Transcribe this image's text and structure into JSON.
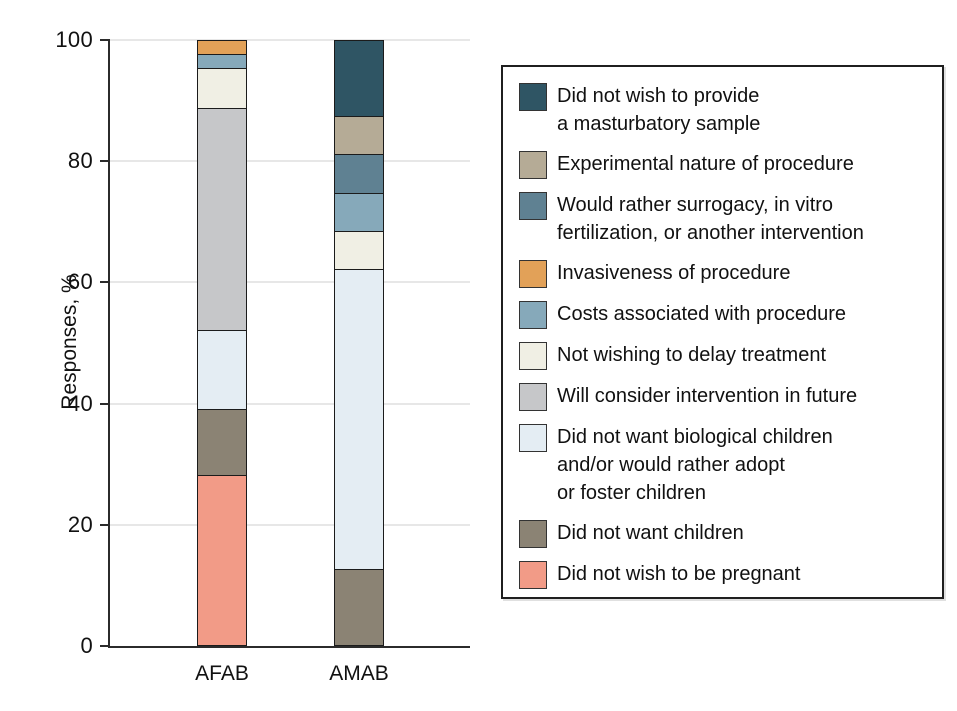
{
  "chart_data": {
    "type": "bar",
    "stacked": true,
    "title": "",
    "xlabel": "",
    "ylabel": "Responses, %",
    "ylim": [
      0,
      100
    ],
    "y_ticks": [
      0,
      20,
      40,
      60,
      80,
      100
    ],
    "grid": "horizontal",
    "legend_position": "right",
    "categories": [
      "AFAB",
      "AMAB"
    ],
    "stack_order": "series listed top-of-bar to bottom-of-bar; values are percent of responses per category",
    "series": [
      {
        "label": "Did not wish to provide a masturbatory sample",
        "label_lines": [
          "Did not wish to provide",
          "a masturbatory sample"
        ],
        "color": "#2F5564",
        "values": [
          0,
          12.5
        ]
      },
      {
        "label": "Experimental nature of procedure",
        "label_lines": [
          "Experimental nature of procedure"
        ],
        "color": "#B5AB96",
        "values": [
          0,
          6.25
        ]
      },
      {
        "label": "Would rather surrogacy, in vitro fertilization, or another intervention",
        "label_lines": [
          "Would rather surrogacy, in vitro",
          "fertilization, or another intervention"
        ],
        "color": "#5F8192",
        "values": [
          0,
          6.25
        ]
      },
      {
        "label": "Invasiveness of procedure",
        "label_lines": [
          "Invasiveness of procedure"
        ],
        "color": "#E2A158",
        "values": [
          2.2,
          0
        ]
      },
      {
        "label": "Costs associated with procedure",
        "label_lines": [
          "Costs associated with procedure"
        ],
        "color": "#86A9BA",
        "values": [
          2.2,
          6.25
        ]
      },
      {
        "label": "Not wishing to delay treatment",
        "label_lines": [
          "Not wishing to delay treatment"
        ],
        "color": "#F0EFE4",
        "values": [
          6.5,
          6.25
        ]
      },
      {
        "label": "Will consider intervention in future",
        "label_lines": [
          "Will consider intervention in future"
        ],
        "color": "#C6C7C9",
        "values": [
          37.0,
          0
        ]
      },
      {
        "label": "Did not want biological children and/or would rather adopt or foster children",
        "label_lines": [
          "Did not want biological children",
          "and/or would rather adopt",
          "or foster children"
        ],
        "color": "#E4EDF3",
        "values": [
          13.0,
          50.0
        ]
      },
      {
        "label": "Did not want children",
        "label_lines": [
          "Did not want children"
        ],
        "color": "#8B8374",
        "values": [
          10.9,
          12.5
        ]
      },
      {
        "label": "Did not wish to be pregnant",
        "label_lines": [
          "Did not wish to be pregnant"
        ],
        "color": "#F29B87",
        "values": [
          28.3,
          0
        ]
      }
    ],
    "colors": {
      "axis": "#2b2b2b",
      "gridline": "#e7e7e7",
      "bar_border": "#1b1b1b",
      "background": "#ffffff"
    }
  }
}
